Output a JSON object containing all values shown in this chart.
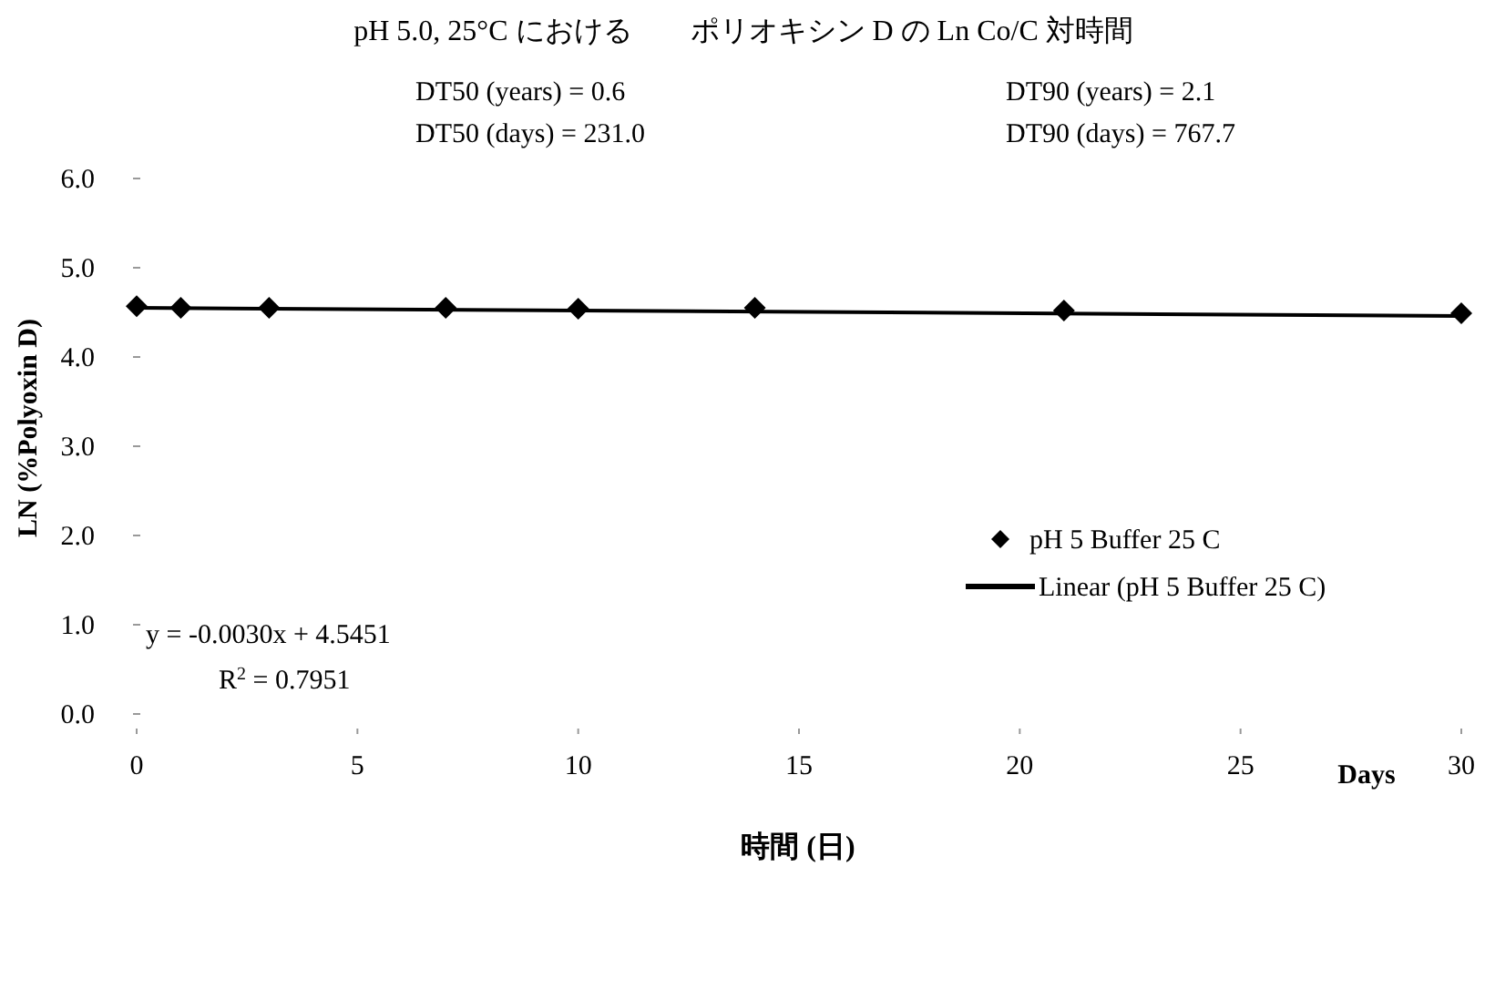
{
  "chart_data": {
    "type": "scatter",
    "title": "pH 5.0,  25°C における　　ポリオキシン D の Ln Co/C 対時間",
    "xlabel": "時間 (日)",
    "ylabel": "LN (%Polyoxin D)",
    "annotations": [
      "DT50 (years) =  0.6",
      "DT90 (years) =  2.1",
      "DT50 (days) =  231.0",
      "DT90 (days) =  767.7",
      "Days",
      "y = -0.0030x + 4.5451",
      "R$^{2}$ = 0.7951"
    ],
    "series": [
      {
        "name": "pH 5 Buffer 25 C",
        "color": "#000000",
        "marker": "diamond",
        "x": [
          0,
          1,
          3,
          7,
          10,
          14,
          21,
          30
        ],
        "values": [
          4.57,
          4.55,
          4.55,
          4.55,
          4.54,
          4.55,
          4.52,
          4.49
        ]
      },
      {
        "name": "Linear (pH 5 Buffer 25 C)",
        "type": "line",
        "color": "#000000",
        "marker": "none",
        "line_style": "solid",
        "x": [
          0,
          30
        ],
        "values": [
          4.55,
          4.46
        ]
      }
    ],
    "xlim": [
      0,
      30
    ],
    "xticks": [
      0,
      5,
      10,
      15,
      20,
      25,
      30
    ],
    "ylim": [
      0,
      6
    ],
    "yticks": [
      {
        "value": 0,
        "label": "0.0"
      },
      {
        "value": 1,
        "label": "1.0"
      },
      {
        "value": 2,
        "label": "2.0"
      },
      {
        "value": 3,
        "label": "3.0"
      },
      {
        "value": 4,
        "label": "4.0"
      },
      {
        "value": 5,
        "label": "5.0"
      },
      {
        "value": 6,
        "label": "6.0"
      }
    ],
    "grid": false,
    "legend": "right"
  }
}
